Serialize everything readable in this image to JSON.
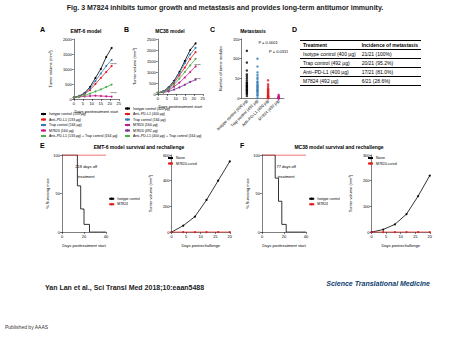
{
  "title": "Fig. 3 M7824 inhibits tumor growth and metastasis and provides long-term antitumor immunity.",
  "citation": "Yan Lan et al., Sci Transl Med 2018;10:eaan5488",
  "logo": "Science Translational Medicine",
  "footer": "Published by AAAS",
  "chart_data": [
    {
      "type": "line",
      "panel": "A",
      "title": "EMT-6 model",
      "x_label": "Days posttreatment start",
      "y_label": "Tumor volume (mm³)",
      "x": [
        0,
        3,
        6,
        9,
        12,
        15,
        18,
        21
      ],
      "xlim": [
        0,
        25
      ],
      "xticks": [
        0,
        5,
        10,
        15,
        20,
        25
      ],
      "ylim": [
        0,
        2000
      ],
      "yticks": [
        0,
        500,
        1000,
        1500,
        2000
      ],
      "marker": "circle",
      "legend": "bottom",
      "series": [
        {
          "name": "Isotype control (133 µg)",
          "color": "#000000",
          "values": [
            50,
            100,
            200,
            400,
            700,
            1000,
            1400,
            1700
          ]
        },
        {
          "name": "Anti–PD-L1 (133 µg)",
          "color": "#e41a1c",
          "values": [
            50,
            90,
            170,
            300,
            500,
            700,
            900,
            1100
          ]
        },
        {
          "name": "Trap control (164 µg)",
          "color": "#377eb8",
          "values": [
            50,
            100,
            190,
            350,
            600,
            850,
            1100,
            1300
          ]
        },
        {
          "name": "M7824 (164 µg)",
          "color": "#c51b8a",
          "values": [
            50,
            70,
            90,
            100,
            110,
            100,
            90,
            80
          ]
        },
        {
          "name": "Anti–PD-L1 (133 µg) + Trap control (164 µg)",
          "color": "#4daf4a",
          "values": [
            50,
            80,
            120,
            180,
            250,
            320,
            400,
            480
          ]
        }
      ],
      "annotations": [
        {
          "text": "****",
          "x": 22,
          "y": 1150
        },
        {
          "text": "****",
          "x": 22,
          "y": 200
        }
      ]
    },
    {
      "type": "line",
      "panel": "B",
      "title": "MC38 model",
      "x_label": "Days posttreatment start",
      "y_label": "Tumor volume (mm³)",
      "x": [
        0,
        3,
        6,
        9,
        12,
        15,
        18,
        21
      ],
      "xlim": [
        0,
        25
      ],
      "xticks": [
        0,
        5,
        10,
        15,
        20,
        25
      ],
      "ylim": [
        0,
        2500
      ],
      "yticks": [
        0,
        500,
        1000,
        1500,
        2000,
        2500
      ],
      "marker": "circle",
      "legend": "bottom",
      "series": [
        {
          "name": "Isotype control (400 µg)",
          "color": "#000000",
          "values": [
            50,
            120,
            300,
            600,
            1000,
            1500,
            2000,
            2300
          ]
        },
        {
          "name": "Anti–PD-L1 (400 µg)",
          "color": "#e41a1c",
          "values": [
            50,
            110,
            250,
            500,
            850,
            1200,
            1600,
            1900
          ]
        },
        {
          "name": "Trap control (164 µg)",
          "color": "#377eb8",
          "values": [
            50,
            115,
            280,
            560,
            950,
            1400,
            1800,
            2100
          ]
        },
        {
          "name": "M7824 (164 µg)",
          "color": "#c51b8a",
          "values": [
            50,
            90,
            180,
            330,
            520,
            750,
            1000,
            1250
          ]
        },
        {
          "name": "M7824 (492 µg)",
          "color": "#7b3294",
          "values": [
            50,
            70,
            120,
            200,
            300,
            420,
            550,
            650
          ]
        },
        {
          "name": "Anti–PD-L1 (400 µg) + Trap control (164 µg)",
          "color": "#4daf4a",
          "values": [
            50,
            100,
            220,
            420,
            700,
            1000,
            1300,
            1600
          ]
        }
      ],
      "annotations": [
        {
          "text": "****",
          "x": 22,
          "y": 1300
        },
        {
          "text": "****",
          "x": 22,
          "y": 650
        }
      ]
    },
    {
      "type": "strip",
      "panel": "C",
      "title": "Metastasis",
      "y_label": "Number of tumor nodules",
      "categories": [
        "Isotype control (400 µg)",
        "Trap control (492 µg)",
        "Anti–PD-L1 (400 µg)",
        "M7824 (492 µg)"
      ],
      "colors": [
        "#000000",
        "#377eb8",
        "#e41a1c",
        "#c51b8a"
      ],
      "ylim": [
        0,
        150
      ],
      "yticks": [
        0,
        50,
        100,
        150
      ],
      "points": [
        [
          5,
          10,
          12,
          15,
          18,
          20,
          22,
          25,
          28,
          30,
          32,
          35,
          38,
          40,
          45,
          50,
          55,
          60,
          70,
          90,
          120
        ],
        [
          0,
          6,
          8,
          12,
          15,
          18,
          20,
          22,
          25,
          28,
          30,
          33,
          36,
          40,
          42,
          48,
          52,
          58,
          65,
          80,
          100
        ],
        [
          0,
          0,
          0,
          0,
          2,
          3,
          4,
          5,
          6,
          8,
          10,
          12,
          14,
          15,
          18,
          20,
          22,
          25,
          30,
          35,
          45
        ],
        [
          0,
          0,
          0,
          0,
          0,
          0,
          0,
          0,
          0,
          0,
          0,
          0,
          0,
          0,
          0,
          1,
          2,
          2,
          3,
          5,
          8
        ]
      ],
      "annotations": [
        {
          "text": "P = 0.0001",
          "x": 1.5,
          "y": 140
        },
        {
          "text": "P = 0.0315",
          "x": 2.5,
          "y": 118
        }
      ]
    },
    {
      "type": "step",
      "panel": "E",
      "title": "EMT-6 model survival and rechallenge",
      "x_label": "Days posttreatment start",
      "y_label": "% Surviving mice",
      "xlim": [
        0,
        40
      ],
      "xticks": [
        0,
        20,
        40
      ],
      "ylim": [
        0,
        100
      ],
      "yticks": [
        0,
        50,
        100
      ],
      "legend": "right",
      "series": [
        {
          "name": "Isotype control",
          "color": "#000000",
          "x": [
            0,
            10,
            14,
            17,
            20,
            25,
            40
          ],
          "values": [
            100,
            100,
            60,
            30,
            10,
            0,
            0
          ]
        },
        {
          "name": "M7824",
          "color": "#e41a1c",
          "x": [
            0,
            40
          ],
          "values": [
            100,
            100
          ]
        }
      ],
      "annotations": [
        {
          "text": "218 days off",
          "x": 22,
          "y": 85
        },
        {
          "text": "treatment",
          "x": 22,
          "y": 72
        }
      ]
    },
    {
      "type": "line",
      "x_label": "Days postrechallenge",
      "y_label": "Tumor volume (mm³)",
      "x": [
        0,
        4,
        8,
        12,
        16,
        20
      ],
      "xlim": [
        0,
        20
      ],
      "xticks": [
        0,
        5,
        10,
        15,
        20
      ],
      "ylim": [
        0,
        600
      ],
      "yticks": [
        0,
        200,
        400,
        600
      ],
      "marker": "circle",
      "legend": "upper left",
      "series": [
        {
          "name": "Naive",
          "color": "#000000",
          "values": [
            0,
            50,
            120,
            250,
            400,
            550
          ]
        },
        {
          "name": "M7824-cured",
          "color": "#e41a1c",
          "values": [
            0,
            0,
            0,
            0,
            0,
            0
          ]
        }
      ]
    },
    {
      "type": "step",
      "panel": "F",
      "title": "MC38 model survival and rechallenge",
      "x_label": "Days posttreatment start",
      "y_label": "% Surviving mice",
      "xlim": [
        0,
        40
      ],
      "xticks": [
        0,
        20,
        40
      ],
      "ylim": [
        0,
        100
      ],
      "yticks": [
        0,
        50,
        100
      ],
      "legend": "right",
      "series": [
        {
          "name": "Isotype control",
          "color": "#000000",
          "x": [
            0,
            8,
            12,
            15,
            18,
            22,
            40
          ],
          "values": [
            100,
            100,
            70,
            40,
            10,
            0,
            0
          ]
        },
        {
          "name": "M7824",
          "color": "#e41a1c",
          "x": [
            0,
            40
          ],
          "values": [
            100,
            100
          ]
        }
      ],
      "annotations": [
        {
          "text": "77 days off",
          "x": 22,
          "y": 85
        },
        {
          "text": "treatment",
          "x": 22,
          "y": 72
        }
      ]
    },
    {
      "type": "line",
      "x_label": "Days postrechallenge",
      "y_label": "Tumor volume (mm³)",
      "x": [
        0,
        4,
        8,
        12,
        16,
        20
      ],
      "xlim": [
        0,
        20
      ],
      "xticks": [
        0,
        5,
        10,
        15,
        20
      ],
      "ylim": [
        0,
        300
      ],
      "yticks": [
        0,
        100,
        200,
        300
      ],
      "marker": "circle",
      "legend": "upper left",
      "series": [
        {
          "name": "Naive",
          "color": "#000000",
          "values": [
            0,
            10,
            30,
            70,
            140,
            220
          ]
        },
        {
          "name": "M7824-cured",
          "color": "#e41a1c",
          "values": [
            0,
            0,
            0,
            0,
            0,
            0
          ]
        }
      ]
    }
  ],
  "table": {
    "panel": "D",
    "header": [
      "Treatment",
      "Incidence of metastasis"
    ],
    "rows": [
      [
        "Isotype control (400 µg)",
        "21/21 (100%)"
      ],
      [
        "Trap control (492 µg)",
        "20/21 (95.2%)"
      ],
      [
        "Anti–PD-L1 (400 µg)",
        "17/21 (81.0%)"
      ],
      [
        "M7824 (492 µg)",
        "6/21 (28.6%)"
      ]
    ]
  }
}
